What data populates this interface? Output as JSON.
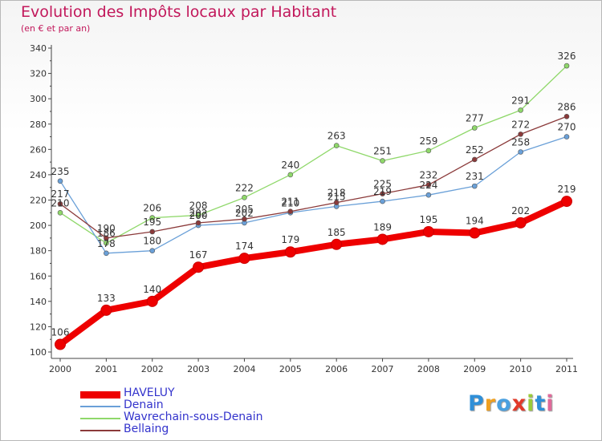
{
  "title": "Evolution des Impôts locaux par Habitant",
  "subtitle": "(en € et par an)",
  "logo": {
    "text": "Proxiti",
    "letters": [
      "P",
      "r",
      "o",
      "x",
      "i",
      "t",
      "i"
    ],
    "letter_colors": [
      "#2f8fd8",
      "#f0a020",
      "#4aa0e0",
      "#e23a2a",
      "#9acb3a",
      "#2f8fd8",
      "#e06a9a"
    ]
  },
  "chart_data": {
    "type": "line",
    "x": [
      "2000",
      "2001",
      "2002",
      "2003",
      "2004",
      "2005",
      "2006",
      "2007",
      "2008",
      "2009",
      "2010",
      "2011"
    ],
    "ylim": [
      100,
      340
    ],
    "yticks": [
      100,
      120,
      140,
      160,
      180,
      200,
      220,
      240,
      260,
      280,
      300,
      320,
      340
    ],
    "grid": false,
    "legend_position": "bottom-left",
    "series": [
      {
        "name": "HAVELUY",
        "color": "#ee0000",
        "values": [
          106,
          133,
          140,
          167,
          174,
          179,
          185,
          189,
          195,
          194,
          202,
          219
        ],
        "labels": [
          "106",
          "133",
          "140",
          "167",
          "174",
          "179",
          "185",
          "189",
          "195",
          "194",
          "202",
          "219"
        ]
      },
      {
        "name": "Denain",
        "color": "#6aa0d8",
        "values": [
          235,
          178,
          180,
          200,
          202,
          210,
          215,
          219,
          224,
          231,
          258,
          270
        ],
        "labels": [
          "235",
          "178",
          "180",
          "200",
          "202",
          "210",
          "215",
          "219",
          "224",
          "231",
          "258",
          "270"
        ]
      },
      {
        "name": "Wavrechain-sous-Denain",
        "color": "#8fd86a",
        "values": [
          210,
          186,
          206,
          208,
          222,
          240,
          263,
          251,
          259,
          277,
          291,
          326
        ],
        "labels": [
          "210",
          "186",
          "206",
          "208",
          "222",
          "240",
          "263",
          "251",
          "259",
          "277",
          "291",
          "326"
        ]
      },
      {
        "name": "Bellaing",
        "color": "#8b3a3a",
        "values": [
          217,
          190,
          195,
          202,
          205,
          211,
          218,
          225,
          232,
          252,
          272,
          286
        ],
        "labels": [
          "217",
          "190",
          "195",
          "202",
          "205",
          "211",
          "218",
          "225",
          "232",
          "252",
          "272",
          "286"
        ]
      }
    ]
  }
}
